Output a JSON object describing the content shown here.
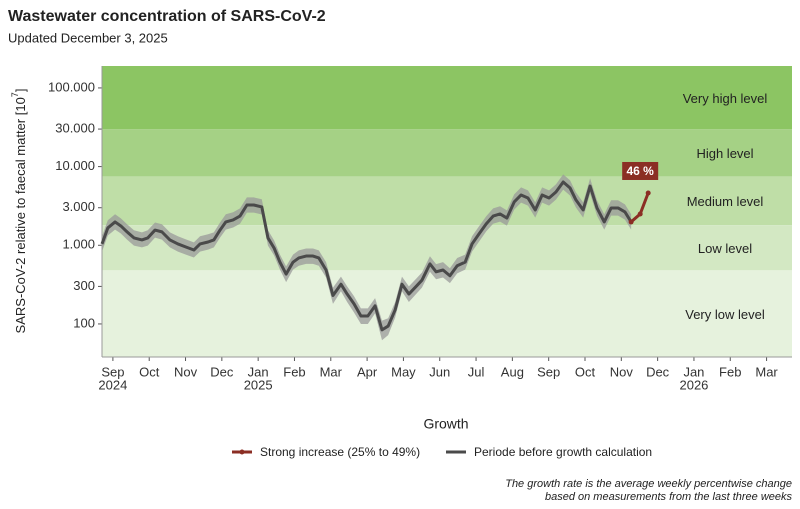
{
  "chart_data": {
    "type": "line",
    "title": "Wastewater concentration of SARS-CoV-2",
    "subtitle": "Updated December 3, 2025",
    "y_label_parts": [
      "SARS-CoV-2 relative to faecal matter [10",
      "7",
      "]"
    ],
    "log_y": true,
    "ylim": [
      38,
      190000
    ],
    "yticks": [
      100,
      300,
      {
        "value": 1000,
        "label": "1.000"
      },
      {
        "value": 3000,
        "label": "3.000"
      },
      {
        "value": 10000,
        "label": "10.000"
      },
      {
        "value": 30000,
        "label": "30.000"
      },
      {
        "value": 100000,
        "label": "100.000"
      }
    ],
    "xlim": [
      -0.3,
      18.7
    ],
    "xticks": [
      {
        "value": 0,
        "label": "Sep"
      },
      {
        "value": 1,
        "label": "Oct"
      },
      {
        "value": 2,
        "label": "Nov"
      },
      {
        "value": 3,
        "label": "Dec"
      },
      {
        "value": 4,
        "label": "Jan"
      },
      {
        "value": 5,
        "label": "Feb"
      },
      {
        "value": 6,
        "label": "Mar"
      },
      {
        "value": 7,
        "label": "Apr"
      },
      {
        "value": 8,
        "label": "May"
      },
      {
        "value": 9,
        "label": "Jun"
      },
      {
        "value": 10,
        "label": "Jul"
      },
      {
        "value": 11,
        "label": "Aug"
      },
      {
        "value": 12,
        "label": "Sep"
      },
      {
        "value": 13,
        "label": "Oct"
      },
      {
        "value": 14,
        "label": "Nov"
      },
      {
        "value": 15,
        "label": "Dec"
      },
      {
        "value": 16,
        "label": "Jan"
      },
      {
        "value": 17,
        "label": "Feb"
      },
      {
        "value": 18,
        "label": "Mar"
      }
    ],
    "x_year_ticks": [
      {
        "value": 0,
        "label": "2024"
      },
      {
        "value": 4,
        "label": "2025"
      },
      {
        "value": 16,
        "label": "2026"
      }
    ],
    "bands": [
      {
        "name": "Very high level",
        "from": 30000,
        "color": "#8cc563"
      },
      {
        "name": "High level",
        "from": 7500,
        "color": "#a5d185"
      },
      {
        "name": "Medium level",
        "from": 1800,
        "color": "#bfdea7"
      },
      {
        "name": "Low level",
        "from": 480,
        "color": "#d3e8c3"
      },
      {
        "name": "Very low level",
        "color": "#e6f2dd"
      }
    ],
    "legend_title": "Growth",
    "annotation": "46 %",
    "series": [
      {
        "name": "Strong increase (25% to 49%)",
        "color": "#8b2e24",
        "x": [
          14.27,
          14.52,
          14.74
        ],
        "values": [
          1980,
          2500,
          4620
        ]
      },
      {
        "name": "Periode before growth calculation",
        "color": "#4a4a4a",
        "ribbon_color": "#9a9a9a",
        "x": [
          -0.3,
          -0.14,
          0.06,
          0.22,
          0.39,
          0.58,
          0.8,
          0.96,
          1.16,
          1.35,
          1.57,
          1.79,
          2.01,
          2.23,
          2.4,
          2.62,
          2.78,
          2.95,
          3.11,
          3.31,
          3.5,
          3.69,
          3.88,
          4.1,
          4.27,
          4.44,
          4.6,
          4.77,
          4.96,
          5.12,
          5.32,
          5.51,
          5.67,
          5.87,
          6.06,
          6.28,
          6.45,
          6.64,
          6.83,
          7.02,
          7.22,
          7.41,
          7.58,
          7.77,
          7.96,
          8.15,
          8.35,
          8.51,
          8.73,
          8.9,
          9.09,
          9.28,
          9.48,
          9.7,
          9.89,
          10.08,
          10.28,
          10.47,
          10.66,
          10.85,
          11.05,
          11.24,
          11.43,
          11.63,
          11.82,
          12.01,
          12.2,
          12.4,
          12.59,
          12.75,
          12.95,
          13.14,
          13.33,
          13.53,
          13.72,
          13.91,
          14.1,
          14.27
        ],
        "values": [
          1040,
          1660,
          1980,
          1760,
          1480,
          1240,
          1170,
          1240,
          1560,
          1480,
          1170,
          1040,
          950,
          870,
          1040,
          1100,
          1170,
          1560,
          1980,
          2100,
          2350,
          3250,
          3250,
          3070,
          1240,
          920,
          610,
          430,
          610,
          690,
          730,
          730,
          690,
          485,
          230,
          320,
          240,
          180,
          126,
          126,
          170,
          84,
          94,
          150,
          320,
          240,
          300,
          360,
          580,
          460,
          485,
          410,
          550,
          610,
          1040,
          1390,
          1870,
          2350,
          2500,
          2220,
          3550,
          4360,
          3990,
          2810,
          4360,
          3990,
          4750,
          6370,
          5340,
          3770,
          2810,
          5660,
          2980,
          1980,
          2980,
          2980,
          2650,
          1980
        ],
        "lower": [
          830,
          1330,
          1580,
          1410,
          1180,
          990,
          940,
          990,
          1250,
          1180,
          940,
          830,
          760,
          700,
          830,
          880,
          940,
          1250,
          1580,
          1680,
          1880,
          2600,
          2600,
          2460,
          990,
          740,
          490,
          340,
          490,
          550,
          580,
          580,
          550,
          390,
          180,
          260,
          190,
          140,
          100,
          100,
          136,
          62,
          72,
          120,
          260,
          190,
          240,
          290,
          460,
          370,
          390,
          330,
          440,
          490,
          830,
          1110,
          1500,
          1880,
          2000,
          1780,
          2840,
          3490,
          3190,
          2250,
          3490,
          3190,
          3800,
          5100,
          4270,
          3020,
          2250,
          4530,
          2380,
          1580,
          2380,
          2380,
          2120,
          1580
        ],
        "upper": [
          1300,
          2080,
          2480,
          2200,
          1850,
          1550,
          1460,
          1550,
          1950,
          1850,
          1460,
          1300,
          1190,
          1090,
          1300,
          1380,
          1460,
          1950,
          2480,
          2630,
          2940,
          4060,
          4060,
          3840,
          1550,
          1150,
          760,
          540,
          760,
          860,
          910,
          910,
          860,
          610,
          290,
          400,
          300,
          225,
          158,
          158,
          213,
          110,
          118,
          188,
          400,
          300,
          375,
          450,
          725,
          575,
          610,
          510,
          690,
          760,
          1300,
          1740,
          2340,
          2940,
          3130,
          2780,
          4440,
          5450,
          4990,
          3510,
          5450,
          4990,
          5940,
          7960,
          6680,
          4710,
          3510,
          7080,
          3730,
          2480,
          3730,
          3730,
          3310,
          2480
        ]
      }
    ],
    "footnote": [
      "The growth rate is the average weekly percentwise change",
      "based on measurements from the last three weeks"
    ]
  }
}
